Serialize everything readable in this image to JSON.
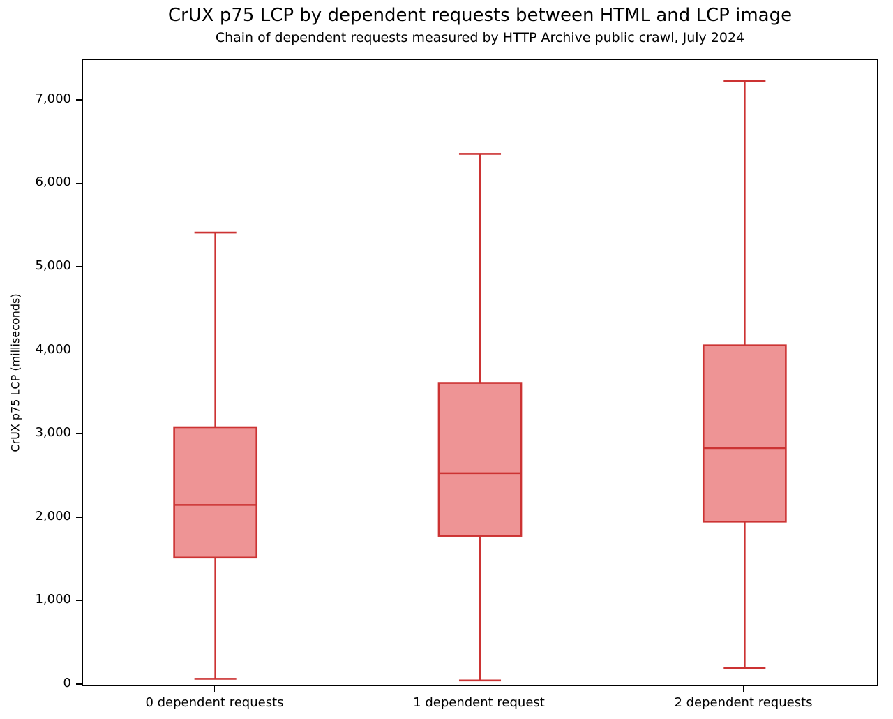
{
  "chart_data": {
    "type": "boxplot",
    "title": "CrUX p75 LCP by dependent requests between HTML and LCP image",
    "subtitle": "Chain of dependent requests measured by HTTP Archive public crawl, July 2024",
    "xlabel": "",
    "ylabel": "CrUX p75 LCP (milliseconds)",
    "ylim": [
      0,
      7483
    ],
    "yticks": [
      0,
      1000,
      2000,
      3000,
      4000,
      5000,
      6000,
      7000
    ],
    "grid": false,
    "legend": "none",
    "categories": [
      "0 dependent requests",
      "1 dependent request",
      "2 dependent requests"
    ],
    "series": [
      {
        "category": "0 dependent requests",
        "min": 80,
        "q1": 1530,
        "median": 2160,
        "q3": 3090,
        "max": 5420
      },
      {
        "category": "1 dependent request",
        "min": 60,
        "q1": 1790,
        "median": 2540,
        "q3": 3620,
        "max": 6360
      },
      {
        "category": "2 dependent requests",
        "min": 210,
        "q1": 1960,
        "median": 2840,
        "q3": 4070,
        "max": 7230
      }
    ],
    "colors": {
      "box_fill": "#ee9495",
      "box_edge": "#cc3333",
      "axis": "#000000",
      "background": "#ffffff"
    }
  }
}
